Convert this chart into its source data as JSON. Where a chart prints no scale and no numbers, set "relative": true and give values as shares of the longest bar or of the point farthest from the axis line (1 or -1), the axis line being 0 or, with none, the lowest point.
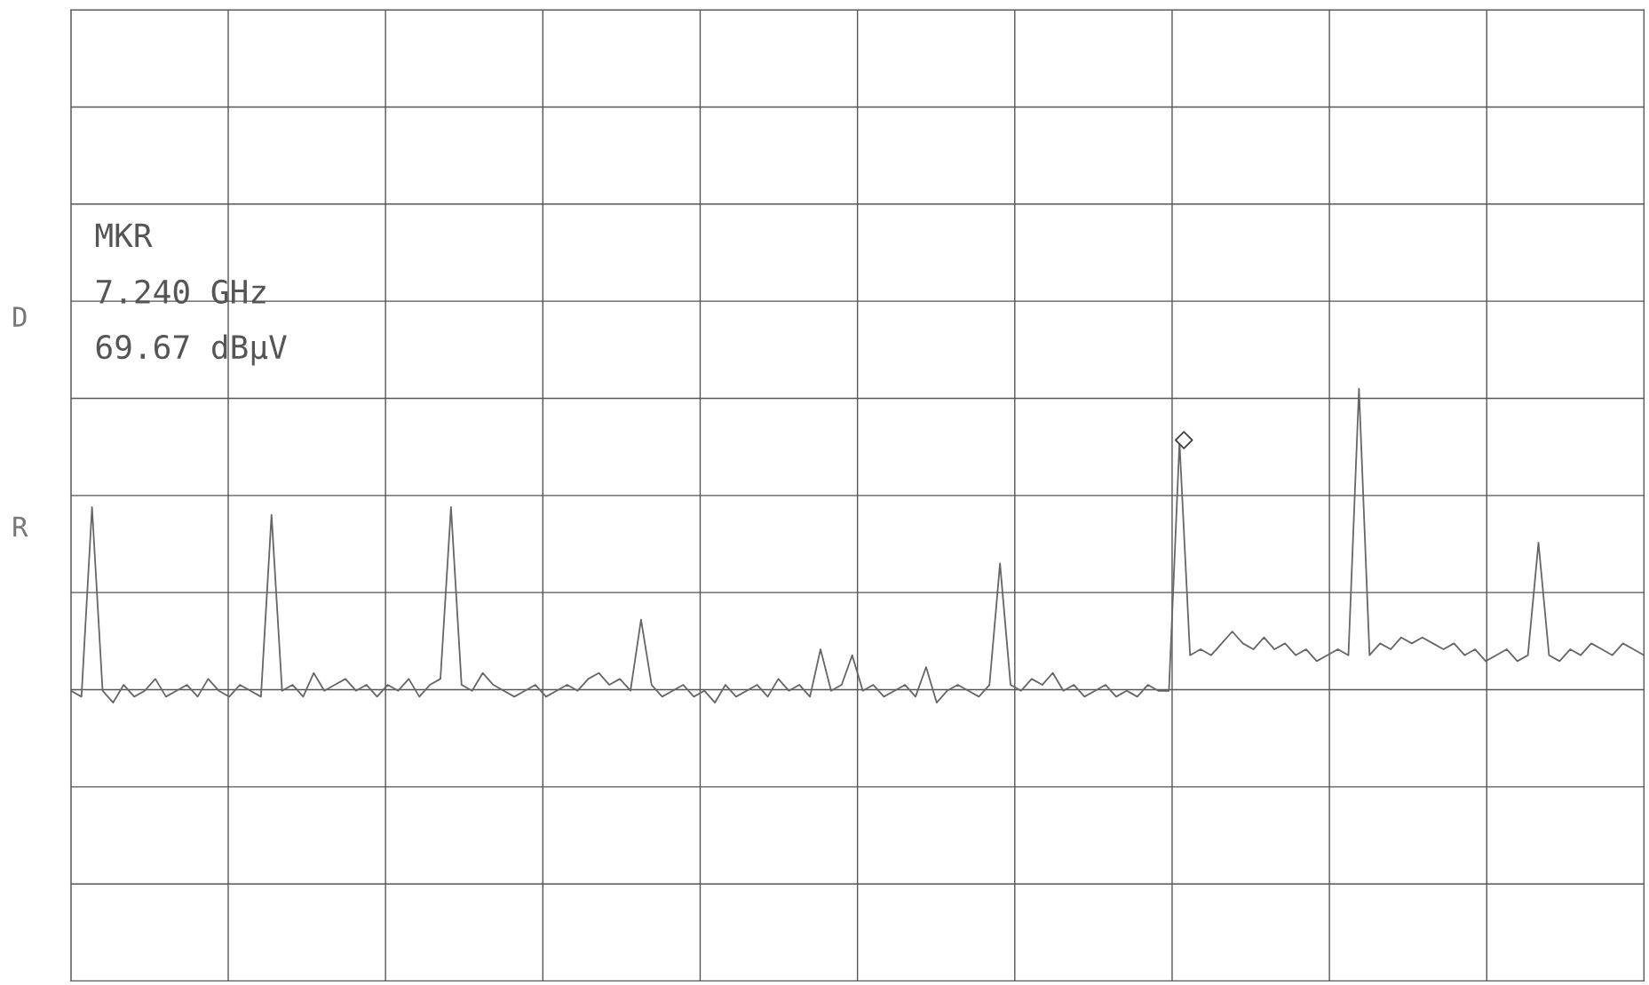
{
  "chart_data": {
    "type": "line",
    "relative": true,
    "grid": true,
    "tick_labels": false,
    "legend": false,
    "categories": [
      null,
      null,
      null,
      null,
      null,
      null,
      null,
      null,
      null,
      null,
      null,
      null,
      null,
      null,
      null,
      null,
      null,
      null,
      null,
      null,
      null,
      null,
      null,
      null,
      null,
      null,
      null,
      null,
      null,
      null,
      null,
      null,
      null,
      null,
      null,
      null,
      null,
      null,
      null,
      null,
      null,
      null,
      null,
      null,
      null,
      null,
      null,
      null,
      null,
      null,
      null,
      null,
      null,
      null,
      null,
      null,
      null,
      null,
      null,
      null,
      null,
      null,
      null,
      null,
      null,
      null,
      null,
      null,
      null,
      null,
      null,
      null,
      null,
      null,
      null,
      null,
      null,
      null,
      null,
      null,
      null,
      null,
      null,
      null,
      null,
      null,
      null,
      null,
      null,
      null,
      null,
      null,
      null,
      null,
      null,
      null,
      null,
      null,
      null,
      null,
      null,
      null,
      null,
      null,
      null,
      null,
      null,
      null,
      null,
      null,
      null,
      null,
      null,
      null,
      null,
      null,
      null,
      null,
      null,
      null,
      null,
      null,
      null,
      null,
      null,
      null,
      null,
      null,
      null,
      null,
      null,
      null,
      null,
      null,
      null,
      null,
      null,
      null,
      null,
      null,
      null,
      null,
      null,
      null,
      null,
      null,
      null,
      null,
      null,
      null
    ],
    "series": [
      {
        "color": "#666666",
        "marker": "none",
        "line_style": "solid",
        "values": [
          0.49,
          0.48,
          0.8,
          0.49,
          0.47,
          0.5,
          0.48,
          0.49,
          0.51,
          0.48,
          0.49,
          0.5,
          0.48,
          0.51,
          0.49,
          0.48,
          0.5,
          0.49,
          0.48,
          0.787,
          0.49,
          0.5,
          0.48,
          0.52,
          0.49,
          0.5,
          0.51,
          0.49,
          0.5,
          0.48,
          0.5,
          0.49,
          0.51,
          0.48,
          0.5,
          0.51,
          0.8,
          0.5,
          0.49,
          0.52,
          0.5,
          0.49,
          0.48,
          0.49,
          0.5,
          0.48,
          0.49,
          0.5,
          0.49,
          0.51,
          0.52,
          0.5,
          0.51,
          0.49,
          0.61,
          0.5,
          0.48,
          0.49,
          0.5,
          0.48,
          0.49,
          0.47,
          0.5,
          0.48,
          0.49,
          0.5,
          0.48,
          0.51,
          0.49,
          0.5,
          0.48,
          0.56,
          0.49,
          0.5,
          0.55,
          0.49,
          0.5,
          0.48,
          0.49,
          0.5,
          0.48,
          0.53,
          0.47,
          0.49,
          0.5,
          0.49,
          0.48,
          0.5,
          0.705,
          0.5,
          0.49,
          0.51,
          0.5,
          0.52,
          0.49,
          0.5,
          0.48,
          0.49,
          0.5,
          0.48,
          0.49,
          0.48,
          0.5,
          0.49,
          0.49,
          0.91,
          0.55,
          0.56,
          0.55,
          0.57,
          0.59,
          0.57,
          0.56,
          0.58,
          0.56,
          0.57,
          0.55,
          0.56,
          0.54,
          0.55,
          0.56,
          0.55,
          1.0,
          0.55,
          0.57,
          0.56,
          0.58,
          0.57,
          0.58,
          0.57,
          0.56,
          0.57,
          0.55,
          0.56,
          0.54,
          0.55,
          0.56,
          0.54,
          0.55,
          0.74,
          0.55,
          0.54,
          0.56,
          0.55,
          0.57,
          0.56,
          0.55,
          0.57,
          0.56,
          0.55
        ]
      }
    ],
    "annotations": [
      "MKR",
      "7.240 GHz",
      "69.67 dBμV",
      "D",
      "R"
    ]
  }
}
